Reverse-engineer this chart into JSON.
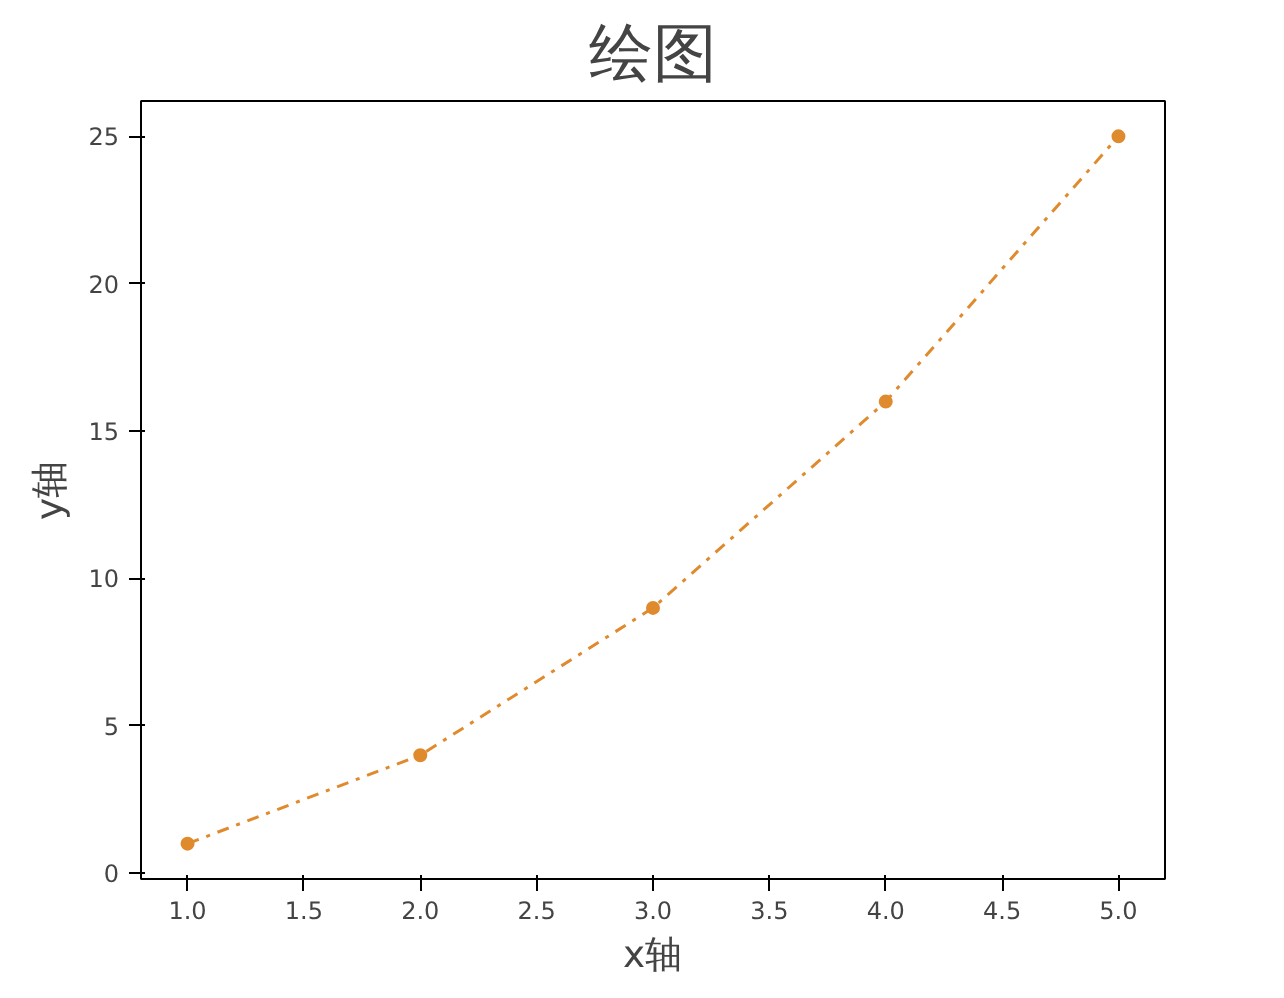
{
  "chart_data": {
    "type": "line",
    "title": "绘图",
    "xlabel": "x轴",
    "ylabel": "y轴",
    "x": [
      1,
      2,
      3,
      4,
      5
    ],
    "series": [
      {
        "color": "#e08a2e",
        "values": [
          1,
          4,
          9,
          16,
          25
        ]
      }
    ],
    "xlim": [
      0.8,
      5.2
    ],
    "ylim": [
      -0.2,
      26.2
    ],
    "xticks": [
      {
        "value": 1,
        "label": "1.0"
      },
      {
        "value": 1.5,
        "label": "1.5"
      },
      {
        "value": 2,
        "label": "2.0"
      },
      {
        "value": 2.5,
        "label": "2.5"
      },
      {
        "value": 3,
        "label": "3.0"
      },
      {
        "value": 3.5,
        "label": "3.5"
      },
      {
        "value": 4,
        "label": "4.0"
      },
      {
        "value": 4.5,
        "label": "4.5"
      },
      {
        "value": 5,
        "label": "5.0"
      }
    ],
    "yticks": [
      0,
      5,
      10,
      15,
      20,
      25
    ],
    "grid": false,
    "marker": "circle",
    "line_style": "dashdot"
  }
}
